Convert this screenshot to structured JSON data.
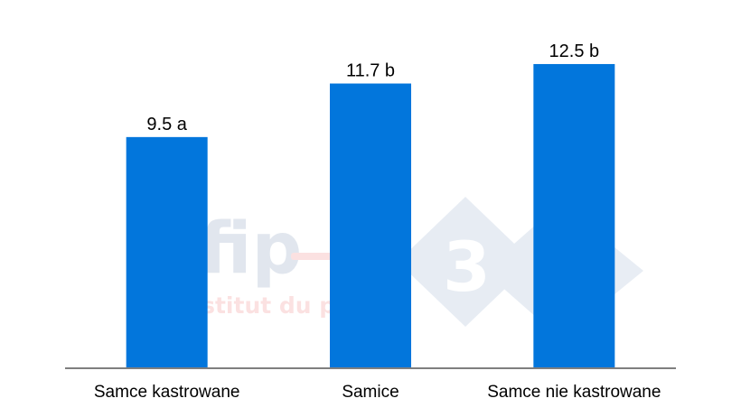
{
  "watermarks": {
    "ifip_logo_text": "ifip",
    "ifip_subtitle": "Institut du porc",
    "badge_number": "3"
  },
  "chart_data": {
    "type": "bar",
    "title": "",
    "xlabel": "",
    "ylabel": "",
    "categories": [
      "Samce kastrowane",
      "Samice",
      "Samce nie kastrowane"
    ],
    "values": [
      9.5,
      11.7,
      12.5
    ],
    "data_labels": [
      "9.5 a",
      "11.7 b",
      "12.5 b"
    ],
    "ylim": [
      0,
      13.5
    ],
    "grid": false,
    "legend": "none",
    "bar_color": "#0276DC",
    "axis_color": "#7F7F7F"
  }
}
